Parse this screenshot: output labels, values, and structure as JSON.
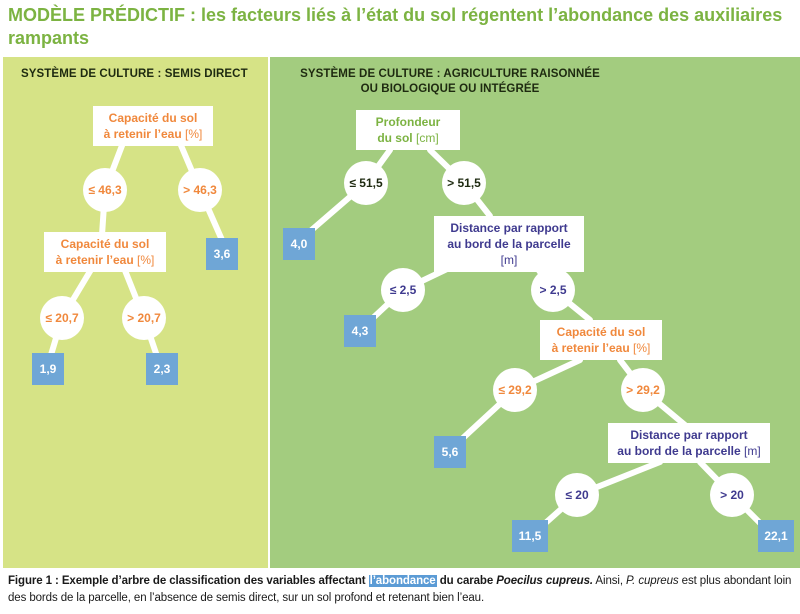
{
  "title": {
    "strong": "MODÈLE PRÉDICTIF :",
    "rest": " les facteurs liés à l’état du sol régentent l’abondance des auxiliaires rampants"
  },
  "panels": {
    "left_heading": "SYSTÈME DE CULTURE : SEMIS DIRECT",
    "right_heading_line1": "SYSTÈME DE CULTURE : AGRICULTURE RAISONNÉE",
    "right_heading_line2": "OU BIOLOGIQUE OU INTÉGRÉE"
  },
  "left_tree": {
    "root": {
      "line1": "Capacité du sol",
      "line2": "à retenir l’eau",
      "unit": "[%]"
    },
    "c1_left": "≤ 46,3",
    "c1_right": "> 46,3",
    "leaf_a": "3,6",
    "node2": {
      "line1": "Capacité du sol",
      "line2": "à retenir l’eau",
      "unit": "[%]"
    },
    "c2_left": "≤ 20,7",
    "c2_right": "> 20,7",
    "leaf_b": "1,9",
    "leaf_c": "2,3"
  },
  "right_tree": {
    "root": {
      "line1": "Profondeur",
      "line2": "du sol",
      "unit": "[cm]"
    },
    "c1_left": "≤ 51,5",
    "c1_right": "> 51,5",
    "leaf_a": "4,0",
    "node2": {
      "line1": "Distance par rapport",
      "line2": "au bord de la parcelle",
      "unit": "[m]"
    },
    "c2_left": "≤ 2,5",
    "c2_right": "> 2,5",
    "leaf_b": "4,3",
    "node3": {
      "line1": "Capacité du sol",
      "line2": "à retenir l’eau",
      "unit": "[%]"
    },
    "c3_left": "≤ 29,2",
    "c3_right": "> 29,2",
    "leaf_c": "5,6",
    "node4": {
      "line1": "Distance par rapport",
      "line2": "au bord de la parcelle",
      "unit": "[m]"
    },
    "c4_left": "≤ 20",
    "c4_right": "> 20",
    "leaf_d": "11,5",
    "leaf_e": "22,1"
  },
  "caption": {
    "label": "Figure 1 : Exemple d’arbre de classification des variables affectant ",
    "highlight": "l’abondance",
    "after_highlight": " du carabe ",
    "species": "Poecilus cupreus.",
    "text1": " Ainsi, ",
    "species_short": "P. cupreus",
    "text2": " est plus abondant loin des bords de la parcelle, en l’absence de semis direct, sur un sol profond et retenant bien l’eau."
  },
  "colors": {
    "title_green": "#7cb342",
    "left_panel": "#d6e386",
    "right_panel": "#a3cc7f",
    "orange": "#f0883c",
    "purple": "#3f3a8f",
    "leaf_blue": "#6fa6d6",
    "highlight_blue": "#5b9bd5"
  }
}
